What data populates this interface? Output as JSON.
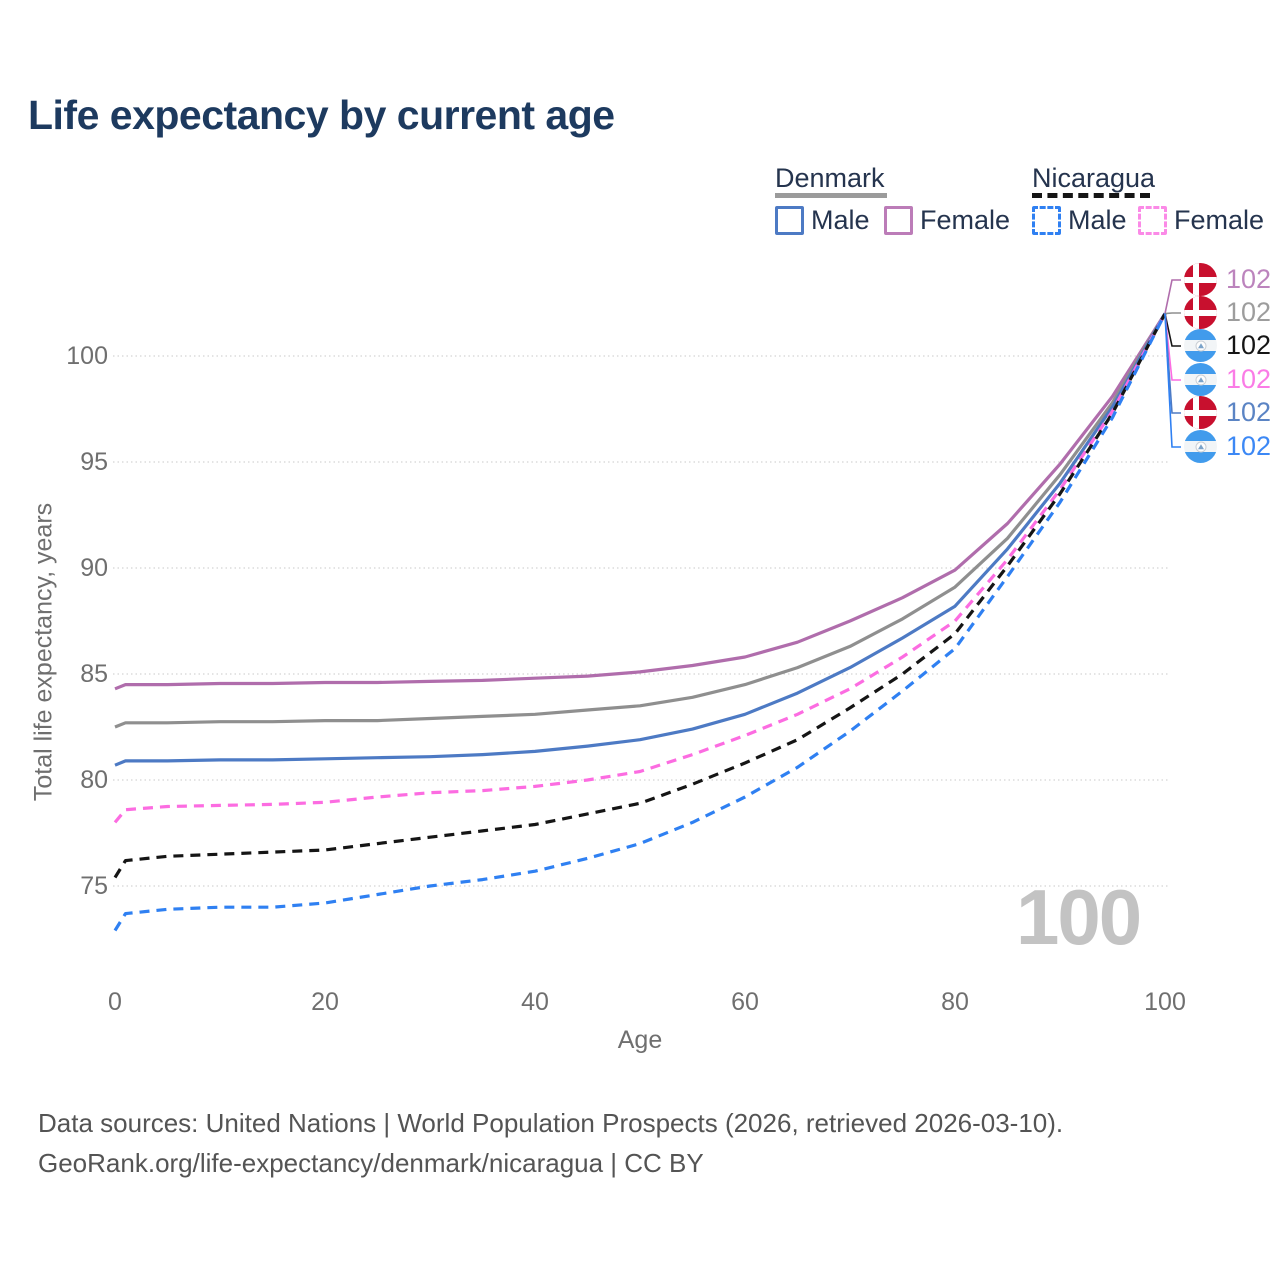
{
  "title": "Life expectancy by current age",
  "watermark": "100",
  "legend": {
    "groups": [
      {
        "label": "Denmark",
        "line_style": "solid",
        "line_color": "#9b9b9b",
        "items": [
          {
            "label": "Male",
            "color": "#4d7ac4",
            "dashed": false
          },
          {
            "label": "Female",
            "color": "#bc7cb8",
            "dashed": false
          }
        ]
      },
      {
        "label": "Nicaragua",
        "line_style": "dashed",
        "line_color": "#151515",
        "items": [
          {
            "label": "Male",
            "color": "#2f80f2",
            "dashed": true
          },
          {
            "label": "Female",
            "color": "#fb8ae7",
            "dashed": true
          }
        ]
      }
    ]
  },
  "chart_data": {
    "type": "line",
    "title": "Life expectancy by current age",
    "xlabel": "Age",
    "ylabel": "Total life expectancy, years",
    "x_ticks": [
      0,
      20,
      40,
      60,
      80,
      100
    ],
    "y_ticks": [
      75,
      80,
      85,
      90,
      95,
      100
    ],
    "xlim": [
      0,
      100
    ],
    "ylim": [
      72.5,
      102.5
    ],
    "grid": "horizontal-dotted",
    "legend_position": "top-right",
    "x": [
      0,
      1,
      5,
      10,
      15,
      20,
      25,
      30,
      35,
      40,
      45,
      50,
      55,
      60,
      65,
      70,
      75,
      80,
      85,
      90,
      95,
      100
    ],
    "series": [
      {
        "name": "Denmark Female",
        "country": "Denmark",
        "sex": "Female",
        "color": "#b06dac",
        "dashed": false,
        "values": [
          84.3,
          84.5,
          84.5,
          84.55,
          84.55,
          84.6,
          84.6,
          84.65,
          84.7,
          84.8,
          84.9,
          85.1,
          85.4,
          85.8,
          86.5,
          87.5,
          88.6,
          89.9,
          92.1,
          94.9,
          98.1,
          102
        ]
      },
      {
        "name": "Denmark",
        "country": "Denmark",
        "sex": "Both",
        "color": "#8f8f8f",
        "dashed": false,
        "values": [
          82.5,
          82.7,
          82.7,
          82.75,
          82.75,
          82.8,
          82.8,
          82.9,
          83.0,
          83.1,
          83.3,
          83.5,
          83.9,
          84.5,
          85.3,
          86.3,
          87.6,
          89.1,
          91.4,
          94.4,
          97.8,
          102
        ]
      },
      {
        "name": "Denmark Male",
        "country": "Denmark",
        "sex": "Male",
        "color": "#4d7ac4",
        "dashed": false,
        "values": [
          80.7,
          80.9,
          80.9,
          80.95,
          80.95,
          81.0,
          81.05,
          81.1,
          81.2,
          81.35,
          81.6,
          81.9,
          82.4,
          83.1,
          84.1,
          85.3,
          86.7,
          88.2,
          90.9,
          94.0,
          97.6,
          102
        ]
      },
      {
        "name": "Nicaragua Female",
        "country": "Nicaragua",
        "sex": "Female",
        "color": "#fc6ce1",
        "dashed": true,
        "values": [
          78.0,
          78.6,
          78.75,
          78.8,
          78.85,
          78.95,
          79.2,
          79.4,
          79.5,
          79.7,
          80.0,
          80.4,
          81.2,
          82.1,
          83.1,
          84.3,
          85.8,
          87.5,
          90.4,
          93.7,
          97.4,
          102
        ]
      },
      {
        "name": "Nicaragua",
        "country": "Nicaragua",
        "sex": "Both",
        "color": "#151515",
        "dashed": true,
        "values": [
          75.4,
          76.2,
          76.4,
          76.5,
          76.6,
          76.7,
          77.0,
          77.3,
          77.6,
          77.9,
          78.4,
          78.9,
          79.8,
          80.8,
          81.9,
          83.4,
          85.0,
          86.9,
          90.1,
          93.5,
          97.3,
          102
        ]
      },
      {
        "name": "Nicaragua Male",
        "country": "Nicaragua",
        "sex": "Male",
        "color": "#2f80f2",
        "dashed": true,
        "values": [
          72.9,
          73.7,
          73.9,
          74.0,
          74.0,
          74.2,
          74.6,
          75.0,
          75.3,
          75.7,
          76.3,
          77.0,
          78.0,
          79.2,
          80.6,
          82.3,
          84.2,
          86.2,
          89.6,
          93.1,
          97.1,
          102
        ]
      }
    ],
    "end_labels": [
      {
        "series_index": 0,
        "flag": "denmark",
        "value": "102",
        "text_color": "#bc84bd"
      },
      {
        "series_index": 1,
        "flag": "denmark",
        "value": "102",
        "text_color": "#9d9d9d"
      },
      {
        "series_index": 4,
        "flag": "nicaragua",
        "value": "102",
        "text_color": "#151515"
      },
      {
        "series_index": 3,
        "flag": "nicaragua",
        "value": "102",
        "text_color": "#fa7ce6"
      },
      {
        "series_index": 2,
        "flag": "denmark",
        "value": "102",
        "text_color": "#5b84c4"
      },
      {
        "series_index": 5,
        "flag": "nicaragua",
        "value": "102",
        "text_color": "#3c88f5"
      }
    ]
  },
  "footer": {
    "line1": "Data sources: United Nations | World Population Prospects (2026, retrieved 2026-03-10).",
    "line2": "GeoRank.org/life-expectancy/denmark/nicaragua | CC BY"
  }
}
